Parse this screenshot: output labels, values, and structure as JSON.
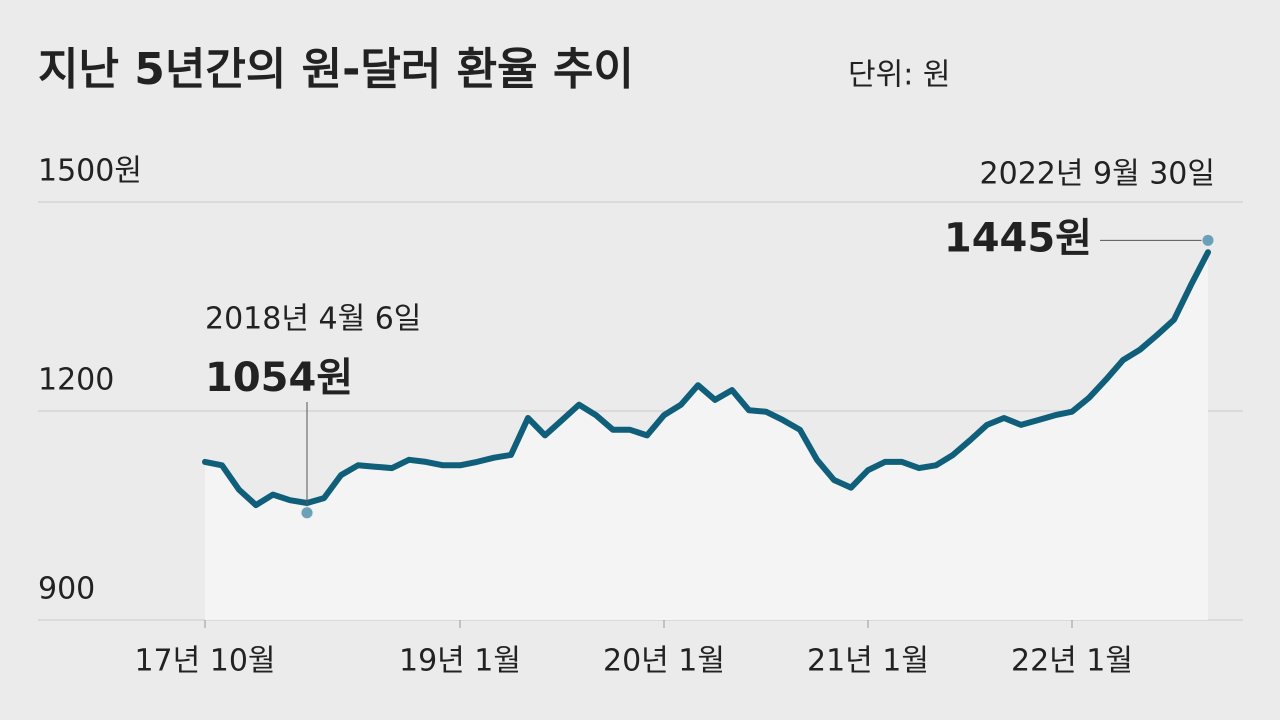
{
  "chart_data": {
    "type": "line",
    "title": "지난 5년간의 원-달러 환율 추이",
    "subtitle": "단위: 원",
    "x": [
      "2017-10",
      "2017-11",
      "2017-12",
      "2018-01",
      "2018-02",
      "2018-03",
      "2018-04",
      "2018-05",
      "2018-06",
      "2018-07",
      "2018-08",
      "2018-09",
      "2018-10",
      "2018-11",
      "2018-12",
      "2019-01",
      "2019-02",
      "2019-03",
      "2019-04",
      "2019-05",
      "2019-06",
      "2019-07",
      "2019-08",
      "2019-09",
      "2019-10",
      "2019-11",
      "2019-12",
      "2020-01",
      "2020-02",
      "2020-03",
      "2020-04",
      "2020-05",
      "2020-06",
      "2020-07",
      "2020-08",
      "2020-09",
      "2020-10",
      "2020-11",
      "2020-12",
      "2021-01",
      "2021-02",
      "2021-03",
      "2021-04",
      "2021-05",
      "2021-06",
      "2021-07",
      "2021-08",
      "2021-09",
      "2021-10",
      "2021-11",
      "2021-12",
      "2022-01",
      "2022-02",
      "2022-03",
      "2022-04",
      "2022-05",
      "2022-06",
      "2022-07",
      "2022-08",
      "2022-09"
    ],
    "series": [
      {
        "name": "원-달러 환율",
        "color": "#0f5f7a",
        "values": [
          1127,
          1122,
          1087,
          1065,
          1080,
          1072,
          1068,
          1075,
          1108,
          1122,
          1120,
          1118,
          1130,
          1127,
          1122,
          1122,
          1127,
          1133,
          1137,
          1190,
          1165,
          1187,
          1209,
          1194,
          1173,
          1173,
          1165,
          1194,
          1209,
          1237,
          1216,
          1230,
          1201,
          1199,
          1187,
          1173,
          1130,
          1101,
          1090,
          1115,
          1127,
          1127,
          1118,
          1122,
          1137,
          1158,
          1180,
          1190,
          1180,
          1187,
          1194,
          1199,
          1219,
          1245,
          1273,
          1288,
          1309,
          1331,
          1381,
          1428
        ]
      }
    ],
    "xlim": [
      "2017-10",
      "2022-09"
    ],
    "xticks": [
      {
        "value": "2017-10",
        "label": "17년 10월"
      },
      {
        "value": "2019-01",
        "label": "19년 1월"
      },
      {
        "value": "2020-01",
        "label": "20년 1월"
      },
      {
        "value": "2021-01",
        "label": "21년 1월"
      },
      {
        "value": "2022-01",
        "label": "22년 1월"
      }
    ],
    "ylim": [
      900,
      1500
    ],
    "yticks": [
      900,
      1200,
      {
        "value": 1500,
        "label": "1500원"
      }
    ],
    "grid": true,
    "annotations": [
      {
        "x": "2018-04",
        "label": "2018년 4월 6일",
        "value": 1054,
        "value_label": "1054원"
      },
      {
        "x": "2022-09",
        "label": "2022년 9월 30일",
        "value": 1445,
        "value_label": "1445원"
      }
    ]
  }
}
